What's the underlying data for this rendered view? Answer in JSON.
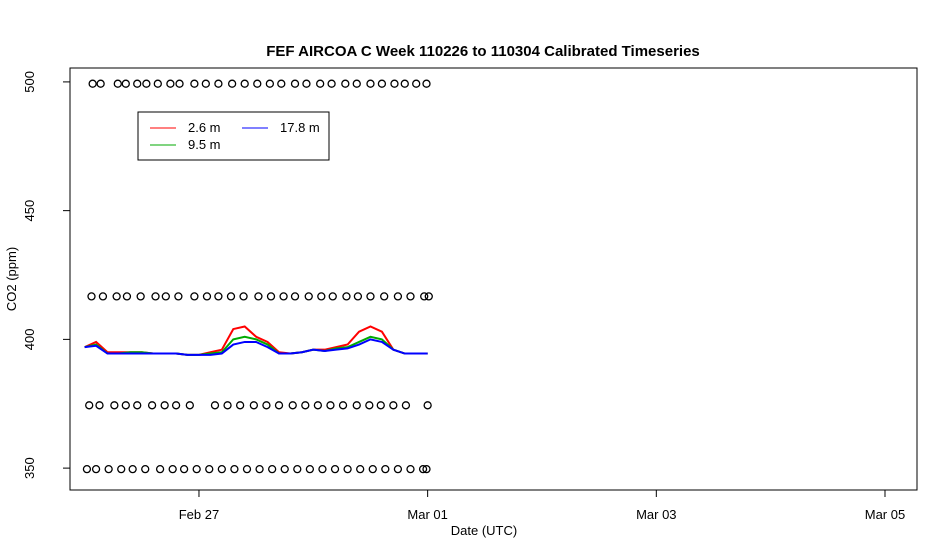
{
  "chart_data": {
    "type": "line",
    "title": "FEF AIRCOA C  Week 110226 to 110304  Calibrated Timeseries",
    "xlabel": "Date (UTC)",
    "ylabel": "CO2 (ppm)",
    "xlim": [
      -0.128,
      7.28
    ],
    "ylim": [
      341.5,
      505.4
    ],
    "xticks": [
      {
        "value": 1,
        "label": "Feb 27"
      },
      {
        "value": 3,
        "label": "Mar 01"
      },
      {
        "value": 5,
        "label": "Mar 03"
      },
      {
        "value": 7,
        "label": "Mar 05"
      }
    ],
    "yticks": [
      350,
      400,
      450,
      500
    ],
    "x": [
      0,
      0.1,
      0.2,
      0.3,
      0.4,
      0.5,
      0.6,
      0.7,
      0.8,
      0.9,
      1.0,
      1.1,
      1.2,
      1.3,
      1.4,
      1.5,
      1.6,
      1.7,
      1.8,
      1.9,
      2.0,
      2.1,
      2.2,
      2.3,
      2.4,
      2.5,
      2.6,
      2.7,
      2.8,
      2.9,
      3.0
    ],
    "series": [
      {
        "name": "2.6 m",
        "color": "#ff0000",
        "values": [
          397,
          399,
          395,
          395,
          395,
          395,
          394.5,
          394.5,
          394.5,
          394,
          394,
          395,
          396,
          404,
          405,
          401,
          399,
          395,
          394.5,
          395,
          396,
          396,
          397,
          398,
          403,
          405,
          403,
          396,
          394.5,
          394.5,
          394.5
        ]
      },
      {
        "name": "9.5 m",
        "color": "#00aa00",
        "values": [
          397,
          398,
          394.5,
          394.5,
          395,
          395,
          394.5,
          394.5,
          394.5,
          394,
          394,
          394.5,
          395,
          400,
          401,
          400,
          398,
          394.5,
          394.5,
          395,
          396,
          395.5,
          396.5,
          397,
          399,
          401,
          400,
          396,
          394.5,
          394.5,
          394.5
        ]
      },
      {
        "name": "17.8 m",
        "color": "#0000ff",
        "values": [
          397,
          397.5,
          394.5,
          394.5,
          394.5,
          394.5,
          394.5,
          394.5,
          394.5,
          394,
          394,
          394,
          394.5,
          398,
          399,
          399,
          397,
          394.5,
          394.5,
          395,
          396,
          395.5,
          396,
          396.5,
          398,
          400,
          399,
          396,
          394.5,
          394.5,
          394.5
        ]
      }
    ],
    "markers": [
      {
        "value": 499.3,
        "x": [
          0.07,
          0.14,
          0.29,
          0.36,
          0.46,
          0.54,
          0.64,
          0.75,
          0.83,
          0.96,
          1.06,
          1.17,
          1.29,
          1.4,
          1.51,
          1.62,
          1.72,
          1.84,
          1.94,
          2.06,
          2.16,
          2.28,
          2.38,
          2.5,
          2.6,
          2.71,
          2.8,
          2.9,
          2.99
        ]
      },
      {
        "value": 416.7,
        "x": [
          0.06,
          0.16,
          0.28,
          0.37,
          0.49,
          0.62,
          0.71,
          0.82,
          0.96,
          1.07,
          1.17,
          1.28,
          1.39,
          1.52,
          1.63,
          1.74,
          1.84,
          1.96,
          2.07,
          2.17,
          2.29,
          2.39,
          2.5,
          2.62,
          2.74,
          2.85,
          2.97,
          3.01
        ]
      },
      {
        "value": 374.4,
        "x": [
          0.04,
          0.13,
          0.26,
          0.36,
          0.46,
          0.59,
          0.7,
          0.8,
          0.92,
          1.14,
          1.25,
          1.36,
          1.48,
          1.59,
          1.7,
          1.82,
          1.93,
          2.04,
          2.15,
          2.26,
          2.38,
          2.49,
          2.59,
          2.7,
          2.81,
          3.0
        ]
      },
      {
        "value": 349.6,
        "x": [
          0.02,
          0.1,
          0.21,
          0.32,
          0.42,
          0.53,
          0.66,
          0.77,
          0.87,
          0.98,
          1.09,
          1.2,
          1.31,
          1.42,
          1.53,
          1.64,
          1.75,
          1.86,
          1.97,
          2.08,
          2.19,
          2.3,
          2.41,
          2.52,
          2.63,
          2.74,
          2.85,
          2.96,
          2.99
        ]
      }
    ]
  }
}
